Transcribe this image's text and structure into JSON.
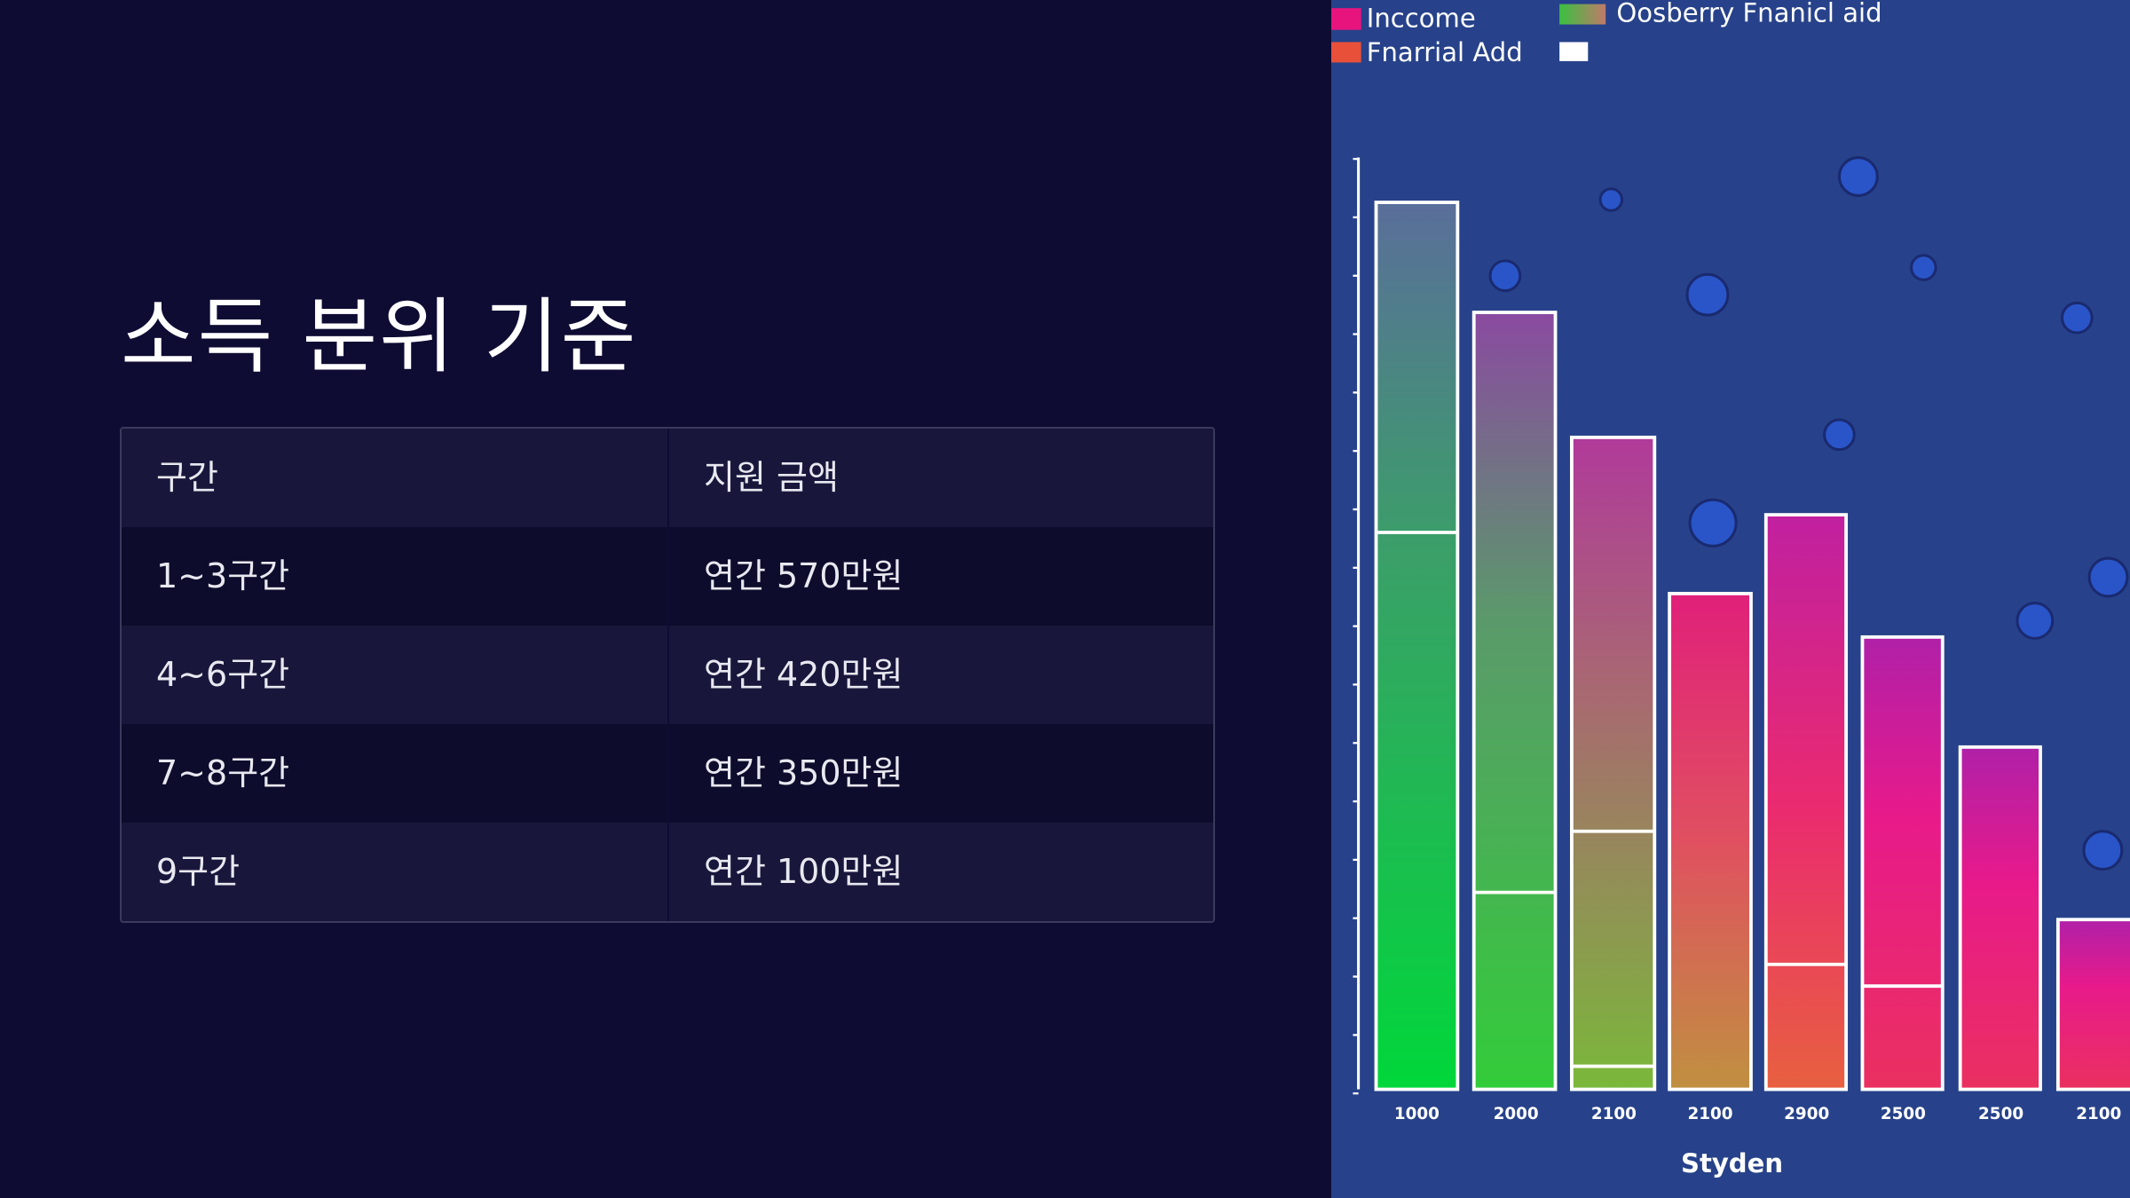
{
  "title": "소득 분위 기준",
  "table": {
    "header": [
      "구간",
      "지원 금액"
    ],
    "rows": [
      [
        "1~3구간",
        "연간 570만원"
      ],
      [
        "4~6구간",
        "연간 420만원"
      ],
      [
        "7~8구간",
        "연간 350만원"
      ],
      [
        "9구간",
        "연간 100만원"
      ]
    ]
  },
  "image": {
    "legend": [
      "Inccome",
      "Fnarrial Add",
      "Oosberry Fnanicl aid"
    ],
    "x_labels": [
      "1000",
      "2000",
      "2100",
      "2100",
      "2900",
      "2500",
      "2500",
      "2100"
    ],
    "x_axis_label": "Styden"
  }
}
